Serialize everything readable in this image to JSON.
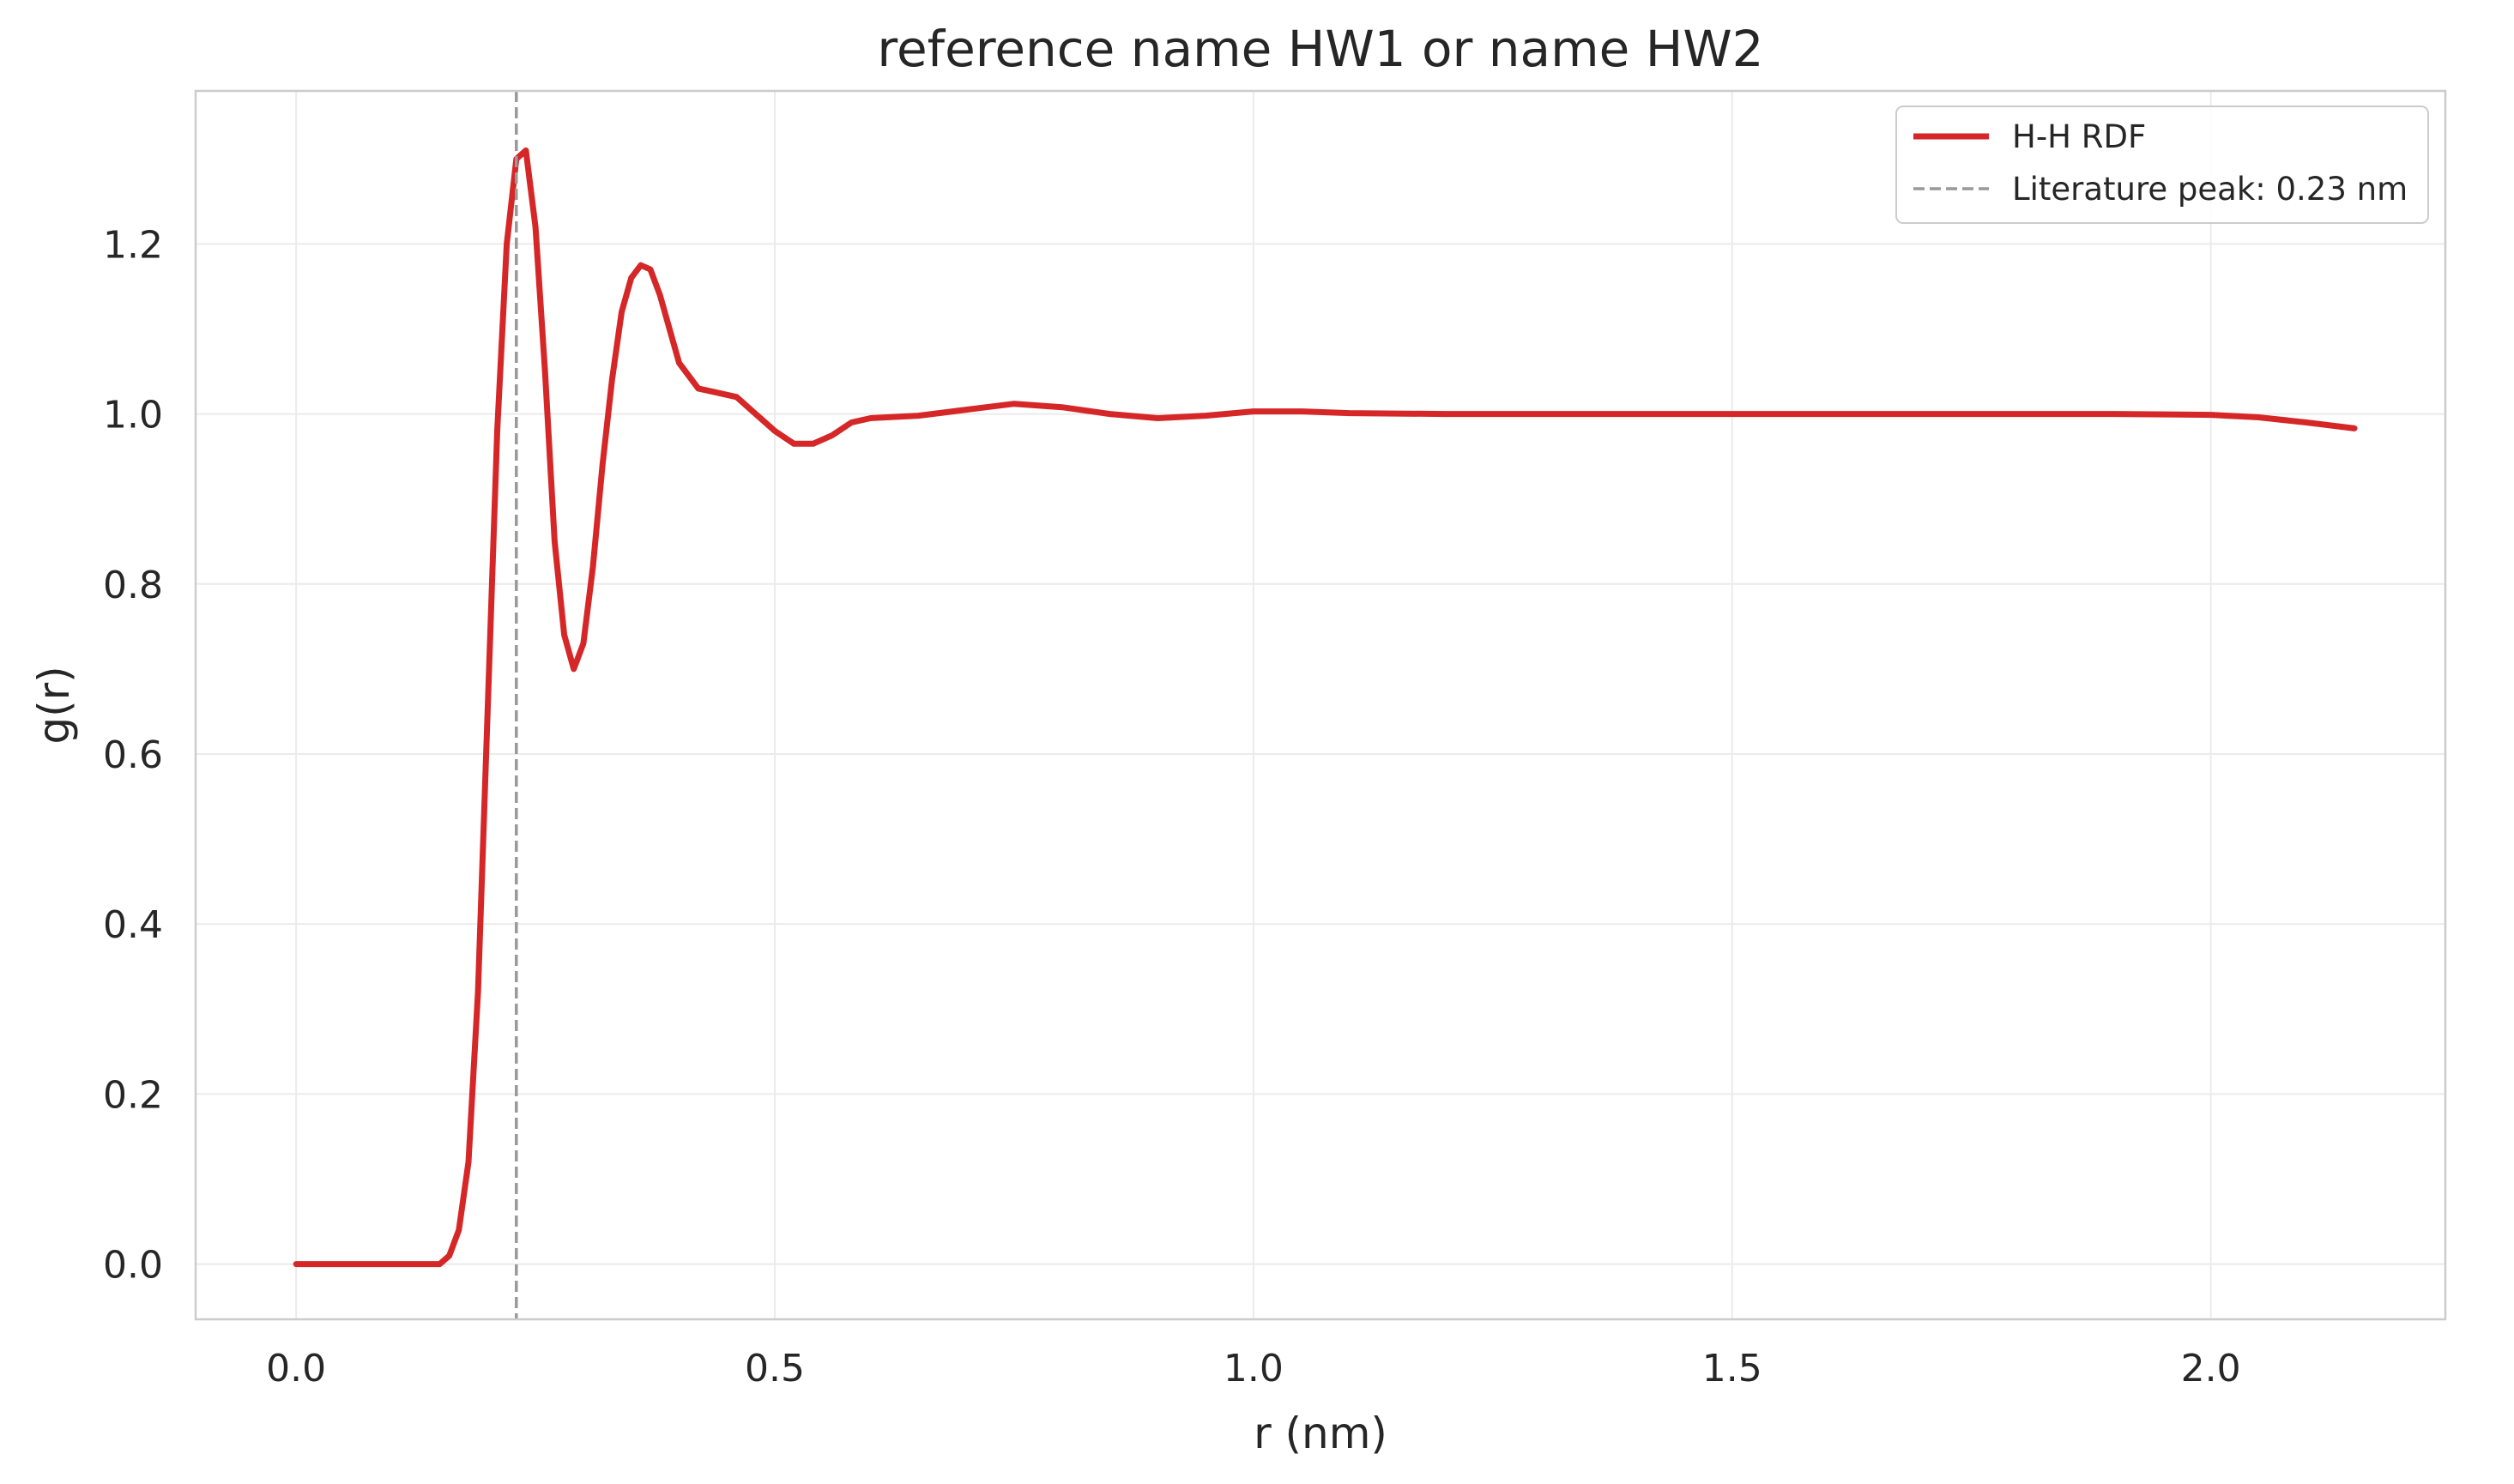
{
  "chart_data": {
    "type": "line",
    "title": "reference name HW1 or name HW2",
    "xlabel": "r (nm)",
    "ylabel": "g(r)",
    "xlim": [
      -0.105,
      2.245
    ],
    "ylim": [
      -0.065,
      1.38
    ],
    "xticks": [
      0.0,
      0.5,
      1.0,
      1.5,
      2.0
    ],
    "xtick_labels": [
      "0.0",
      "0.5",
      "1.0",
      "1.5",
      "2.0"
    ],
    "yticks": [
      0.0,
      0.2,
      0.4,
      0.6,
      0.8,
      1.0,
      1.2
    ],
    "ytick_labels": [
      "0.0",
      "0.2",
      "0.4",
      "0.6",
      "0.8",
      "1.0",
      "1.2"
    ],
    "grid": true,
    "legend_position": "top-right",
    "series": [
      {
        "name": "H-H RDF",
        "color": "#d62728",
        "style": "solid",
        "x": [
          0.0,
          0.05,
          0.1,
          0.15,
          0.16,
          0.17,
          0.18,
          0.19,
          0.2,
          0.21,
          0.22,
          0.23,
          0.24,
          0.25,
          0.26,
          0.27,
          0.28,
          0.29,
          0.3,
          0.31,
          0.32,
          0.33,
          0.34,
          0.35,
          0.36,
          0.37,
          0.38,
          0.39,
          0.4,
          0.42,
          0.44,
          0.46,
          0.48,
          0.5,
          0.52,
          0.54,
          0.56,
          0.58,
          0.6,
          0.65,
          0.7,
          0.75,
          0.8,
          0.85,
          0.9,
          0.95,
          1.0,
          1.05,
          1.1,
          1.2,
          1.3,
          1.4,
          1.5,
          1.6,
          1.7,
          1.8,
          1.9,
          2.0,
          2.05,
          2.1,
          2.15
        ],
        "y": [
          0.0,
          0.0,
          0.0,
          0.0,
          0.01,
          0.04,
          0.12,
          0.32,
          0.65,
          0.98,
          1.2,
          1.3,
          1.31,
          1.22,
          1.05,
          0.85,
          0.74,
          0.7,
          0.73,
          0.82,
          0.94,
          1.04,
          1.12,
          1.16,
          1.175,
          1.17,
          1.14,
          1.1,
          1.06,
          1.03,
          1.025,
          1.02,
          1.0,
          0.98,
          0.965,
          0.965,
          0.975,
          0.99,
          0.995,
          0.998,
          1.005,
          1.012,
          1.008,
          1.0,
          0.995,
          0.998,
          1.003,
          1.003,
          1.001,
          1.0,
          1.0,
          1.0,
          1.0,
          1.0,
          1.0,
          1.0,
          1.0,
          0.999,
          0.996,
          0.99,
          0.983
        ]
      },
      {
        "name": "Literature peak: 0.23 nm",
        "color": "#999999",
        "style": "dashed",
        "vline_x": 0.23
      }
    ]
  }
}
